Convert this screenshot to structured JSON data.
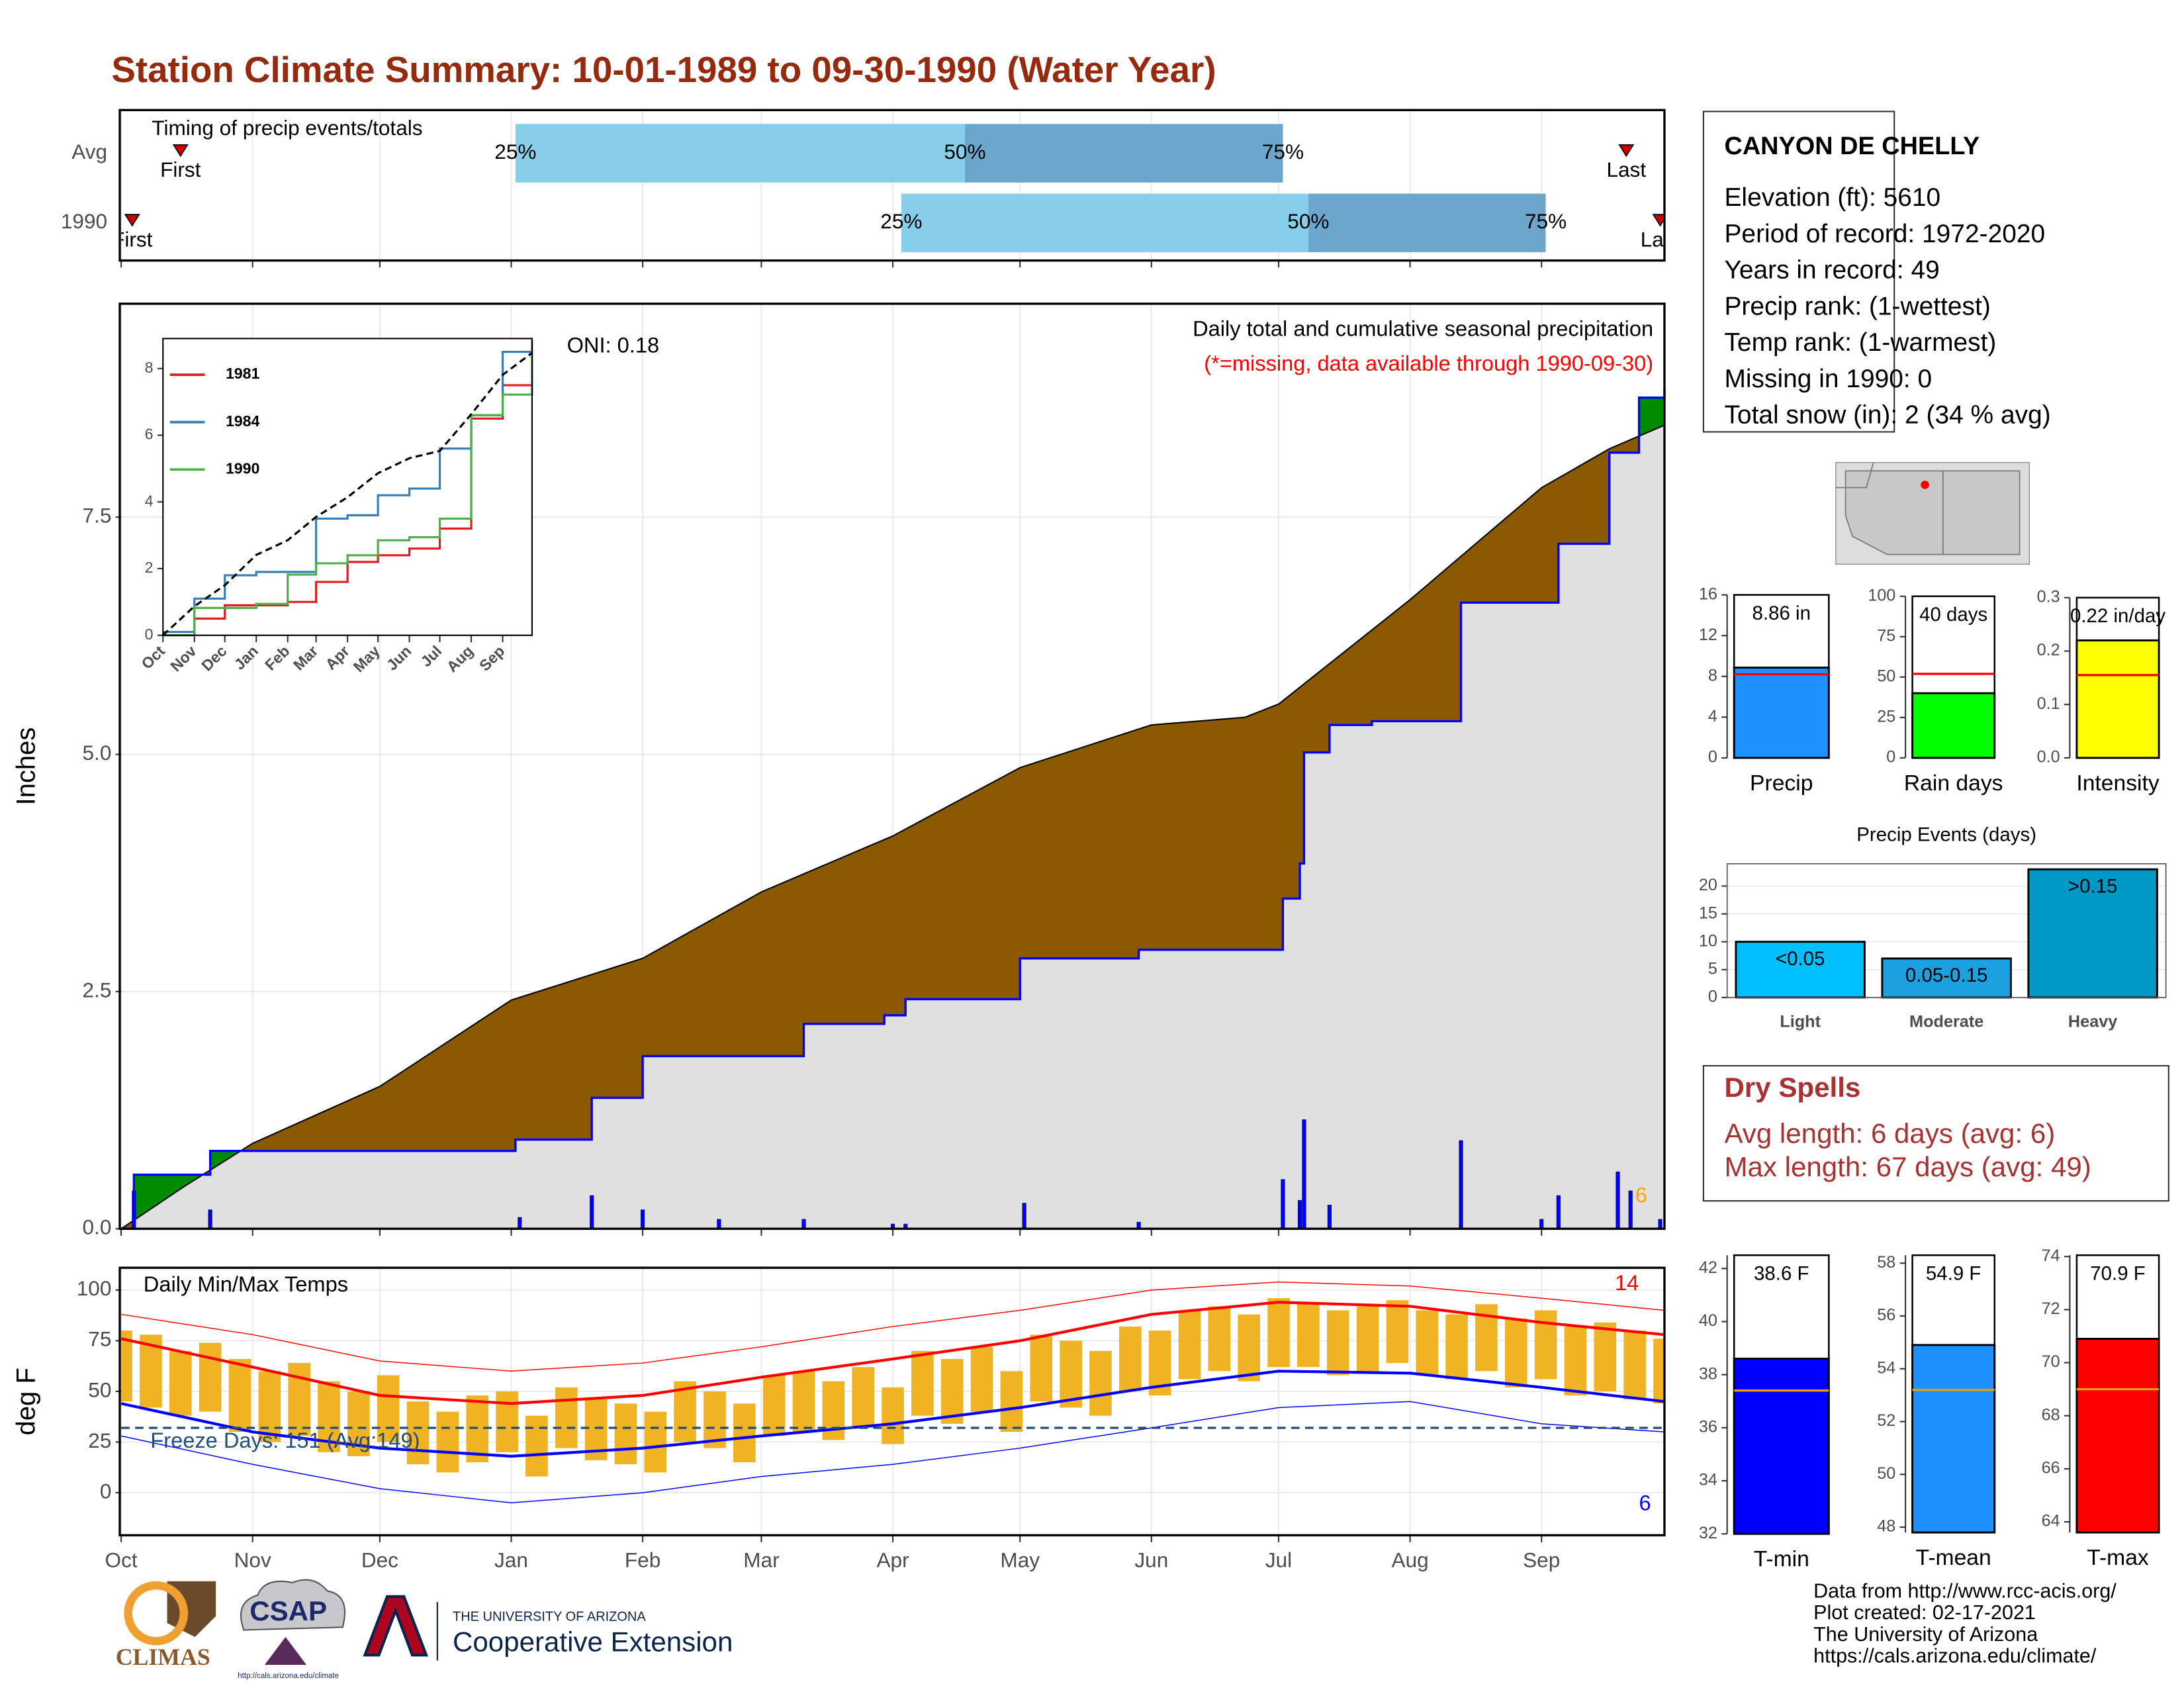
{
  "title": "Station Climate Summary: 10-01-1989 to 09-30-1990 (Water Year)",
  "chart_data": [
    {
      "type": "timeline",
      "title": "Timing of precip events/totals",
      "categories": [
        "Avg",
        "1990"
      ],
      "rows": [
        {
          "first": 14,
          "q25": 93,
          "q50": 199,
          "q75": 274,
          "last": 355
        },
        {
          "first": 2.6,
          "q25": 184,
          "q50": 280,
          "q75": 336,
          "last": 363
        }
      ],
      "marker_labels": {
        "first": "First",
        "last": "Last",
        "q25": "25%",
        "q50": "50%",
        "q75": "75%"
      },
      "colors": [
        "#87ceeb",
        "#6ca6cd"
      ],
      "marker_color": "#cc0000",
      "xlim": [
        0,
        364
      ],
      "xticks": [
        0,
        31,
        61,
        92,
        123,
        151,
        182,
        212,
        243,
        273,
        304,
        335
      ],
      "grid": true
    },
    {
      "type": "area",
      "ylabel": "Inches",
      "annotations": [
        {
          "text": "ONI: 0.18"
        },
        {
          "text": "Daily total and cumulative seasonal precipitation"
        },
        {
          "text": "(*=missing, data available through 1990-09-30)",
          "color": "#ff0000"
        },
        {
          "text": "6",
          "color": "#ffa500"
        }
      ],
      "xlim": [
        0,
        364
      ],
      "xticks": [
        0,
        31,
        61,
        92,
        123,
        151,
        182,
        212,
        243,
        273,
        304,
        335
      ],
      "ylim": [
        0,
        9.75
      ],
      "yticks": [
        {
          "value": 0,
          "label": "0.0"
        },
        2.5,
        {
          "value": 5,
          "label": "5.0"
        },
        7.5
      ],
      "grid": true,
      "series": [
        {
          "color": "#0000ff",
          "step": true,
          "x": [
            0,
            3,
            21,
            93,
            111,
            123,
            161,
            180,
            185,
            212,
            240,
            274,
            278,
            279,
            285,
            295,
            316,
            339,
            351,
            358,
            364
          ],
          "values": [
            0,
            0.57,
            0.82,
            0.94,
            1.38,
            1.82,
            2.16,
            2.25,
            2.42,
            2.85,
            2.94,
            3.48,
            3.85,
            5.02,
            5.31,
            5.35,
            6.6,
            7.22,
            8.18,
            8.76,
            8.86
          ]
        },
        {
          "color": "#000000",
          "x": [
            0,
            15,
            31,
            61,
            92,
            123,
            151,
            182,
            212,
            243,
            265,
            273,
            304,
            335,
            351,
            364
          ],
          "values": [
            0,
            0.45,
            0.9,
            1.5,
            2.41,
            2.85,
            3.55,
            4.14,
            4.86,
            5.31,
            5.39,
            5.53,
            6.63,
            7.81,
            8.22,
            8.47
          ]
        }
      ],
      "fills": {
        "above": "#008b00",
        "below": "#8b5a00",
        "base": "#e0e0e0"
      },
      "bars": {
        "color": "#0000ff",
        "x": [
          3,
          21,
          94,
          111,
          123,
          141,
          161,
          182,
          185,
          213,
          240,
          274,
          278,
          279,
          285,
          316,
          335,
          339,
          353,
          356,
          363
        ],
        "values": [
          0.4,
          0.2,
          0.12,
          0.35,
          0.2,
          0.1,
          0.1,
          0.05,
          0.05,
          0.27,
          0.07,
          0.52,
          0.3,
          1.15,
          0.25,
          0.93,
          0.1,
          0.35,
          0.6,
          0.4,
          0.1
        ]
      }
    },
    {
      "type": "line",
      "legend": true,
      "x": [
        0,
        31,
        61,
        92,
        123,
        151,
        182,
        212,
        243,
        273,
        304,
        335,
        364
      ],
      "xlim": [
        0,
        364
      ],
      "xticks": [
        {
          "value": 0,
          "label": "Oct"
        },
        {
          "value": 31,
          "label": "Nov"
        },
        {
          "value": 61,
          "label": "Dec"
        },
        {
          "value": 92,
          "label": "Jan"
        },
        {
          "value": 123,
          "label": "Feb"
        },
        {
          "value": 151,
          "label": "Mar"
        },
        {
          "value": 182,
          "label": "Apr"
        },
        {
          "value": 212,
          "label": "May"
        },
        {
          "value": 243,
          "label": "Jun"
        },
        {
          "value": 273,
          "label": "Jul"
        },
        {
          "value": 304,
          "label": "Aug"
        },
        {
          "value": 335,
          "label": "Sep"
        }
      ],
      "ylim": [
        0,
        8.9
      ],
      "yticks": [
        0,
        2,
        4,
        6,
        8
      ],
      "series": [
        {
          "name": "1981",
          "color": "#e41a1c",
          "step": true,
          "values": [
            0,
            0.5,
            0.9,
            0.9,
            1.0,
            1.6,
            2.2,
            2.4,
            2.6,
            3.2,
            6.5,
            7.5,
            7.5
          ]
        },
        {
          "name": "1984",
          "color": "#377eb8",
          "step": true,
          "values": [
            0.1,
            1.1,
            1.8,
            1.9,
            1.9,
            3.5,
            3.6,
            4.2,
            4.4,
            5.6,
            6.6,
            8.5,
            8.8
          ]
        },
        {
          "name": "1990",
          "color": "#4daf4a",
          "step": true,
          "values": [
            0,
            0.82,
            0.82,
            0.94,
            1.82,
            2.16,
            2.4,
            2.85,
            2.94,
            3.5,
            6.6,
            7.22,
            8.86
          ]
        },
        {
          "color": "#000000",
          "dash": true,
          "values": [
            0,
            0.87,
            1.5,
            2.41,
            2.85,
            3.55,
            4.14,
            4.86,
            5.31,
            5.53,
            6.63,
            7.81,
            8.47
          ]
        }
      ]
    },
    {
      "type": "bar",
      "xlabel": "Precip",
      "values": [
        8.86
      ],
      "value_labels": [
        "8.86 in"
      ],
      "color": "#1e90ff",
      "avg": 8.2,
      "avg_color": "#ff0000",
      "ylim": [
        0,
        16
      ],
      "yticks": [
        0,
        4,
        8,
        12,
        16
      ]
    },
    {
      "type": "bar",
      "xlabel": "Rain days",
      "values": [
        40
      ],
      "value_labels": [
        "40 days"
      ],
      "color": "#00ff00",
      "avg": 52,
      "avg_color": "#ff0000",
      "ylim": [
        0,
        100
      ],
      "yticks": [
        0,
        25,
        50,
        75,
        100
      ]
    },
    {
      "type": "bar",
      "xlabel": "Intensity",
      "values": [
        0.22
      ],
      "value_labels": [
        "0.22 in/day"
      ],
      "color": "#ffff00",
      "avg": 0.155,
      "avg_color": "#ff0000",
      "ylim": [
        0,
        0.3
      ],
      "yticks": [
        {
          "value": 0,
          "label": "0.0"
        },
        0.1,
        0.2,
        0.3
      ]
    },
    {
      "type": "bar",
      "title": "Precip Events (days)",
      "categories": [
        "Light",
        "Moderate",
        "Heavy"
      ],
      "values": [
        10,
        7,
        23
      ],
      "bar_labels": [
        "<0.05",
        "0.05-0.15",
        ">0.15"
      ],
      "colors": [
        "#00bfff",
        "#1ca0e0",
        "#0099c6"
      ],
      "ylim": [
        0,
        24
      ],
      "yticks": [
        0,
        5,
        10,
        15,
        20
      ],
      "grid": true
    },
    {
      "type": "range",
      "ylabel": "deg F",
      "annotations": [
        {
          "text": "Daily Min/Max Temps"
        },
        {
          "text": "Freeze Days: 151 (Avg:149)",
          "color": "#1f4e79"
        },
        {
          "text": "14",
          "color": "#ff0000"
        },
        {
          "text": "6",
          "color": "#0000ff"
        }
      ],
      "xlim": [
        0,
        364
      ],
      "xticks": [
        {
          "value": 0,
          "label": "Oct"
        },
        {
          "value": 31,
          "label": "Nov"
        },
        {
          "value": 61,
          "label": "Dec"
        },
        {
          "value": 92,
          "label": "Jan"
        },
        {
          "value": 123,
          "label": "Feb"
        },
        {
          "value": 151,
          "label": "Mar"
        },
        {
          "value": 182,
          "label": "Apr"
        },
        {
          "value": 212,
          "label": "May"
        },
        {
          "value": 243,
          "label": "Jun"
        },
        {
          "value": 273,
          "label": "Jul"
        },
        {
          "value": 304,
          "label": "Aug"
        },
        {
          "value": 335,
          "label": "Sep"
        }
      ],
      "ylim": [
        -21,
        111
      ],
      "yticks": [
        0,
        25,
        50,
        75,
        100
      ],
      "grid": true,
      "freeze": 32,
      "freeze_color": "#1f4e79",
      "bars": {
        "color": "#f0b323",
        "x": [
          0,
          7,
          14,
          21,
          28,
          35,
          42,
          49,
          56,
          63,
          70,
          77,
          84,
          91,
          98,
          105,
          112,
          119,
          126,
          133,
          140,
          147,
          154,
          161,
          168,
          175,
          182,
          189,
          196,
          203,
          210,
          217,
          224,
          231,
          238,
          245,
          252,
          259,
          266,
          273,
          280,
          287,
          294,
          301,
          308,
          315,
          322,
          329,
          336,
          343,
          350,
          357,
          364
        ],
        "high": [
          80,
          78,
          70,
          74,
          66,
          60,
          64,
          55,
          50,
          58,
          45,
          40,
          48,
          50,
          38,
          52,
          46,
          44,
          40,
          55,
          50,
          44,
          58,
          60,
          55,
          62,
          52,
          70,
          66,
          72,
          60,
          78,
          75,
          70,
          82,
          80,
          90,
          92,
          88,
          96,
          94,
          90,
          92,
          95,
          90,
          88,
          93,
          86,
          90,
          82,
          84,
          80,
          76
        ],
        "low": [
          45,
          42,
          38,
          40,
          30,
          25,
          28,
          20,
          18,
          25,
          14,
          10,
          15,
          20,
          8,
          22,
          16,
          14,
          10,
          25,
          22,
          15,
          28,
          30,
          26,
          32,
          24,
          38,
          34,
          40,
          30,
          45,
          42,
          38,
          50,
          48,
          56,
          60,
          55,
          62,
          62,
          58,
          60,
          64,
          58,
          56,
          60,
          52,
          56,
          48,
          50,
          46,
          44
        ]
      },
      "x": [
        0,
        31,
        61,
        92,
        123,
        151,
        182,
        212,
        243,
        273,
        304,
        335,
        364
      ],
      "series": [
        {
          "color": "#ff0000",
          "thin": true,
          "values": [
            88,
            78,
            65,
            60,
            64,
            72,
            82,
            90,
            100,
            104,
            102,
            96,
            90
          ]
        },
        {
          "color": "#0000ff",
          "thin": true,
          "values": [
            28,
            14,
            2,
            -5,
            0,
            8,
            14,
            22,
            32,
            42,
            45,
            34,
            30
          ]
        },
        {
          "color": "#ff0000",
          "values": [
            76,
            62,
            48,
            44,
            48,
            57,
            66,
            75,
            88,
            94,
            92,
            84,
            78
          ]
        },
        {
          "color": "#0000ff",
          "values": [
            44,
            30,
            22,
            18,
            22,
            28,
            34,
            42,
            52,
            60,
            59,
            52,
            45
          ]
        }
      ]
    },
    {
      "type": "bar",
      "xlabel": "T-min",
      "values": [
        38.6
      ],
      "value_labels": [
        "38.6 F"
      ],
      "color": "#0000ff",
      "avg": 37.4,
      "avg_color": "#e69f00",
      "ylim": [
        32,
        42.5
      ],
      "yticks": [
        32,
        34,
        36,
        38,
        40,
        42
      ]
    },
    {
      "type": "bar",
      "xlabel": "T-mean",
      "values": [
        54.9
      ],
      "value_labels": [
        "54.9 F"
      ],
      "color": "#1e90ff",
      "avg": 53.2,
      "avg_color": "#e69f00",
      "ylim": [
        47.8,
        58.3
      ],
      "yticks": [
        48,
        50,
        52,
        54,
        56,
        58
      ]
    },
    {
      "type": "bar",
      "xlabel": "T-max",
      "values": [
        70.9
      ],
      "value_labels": [
        "70.9 F"
      ],
      "color": "#ff0000",
      "avg": 69,
      "avg_color": "#e69f00",
      "ylim": [
        63.6,
        74.05
      ],
      "yticks": [
        64,
        66,
        68,
        70,
        72,
        74
      ]
    }
  ],
  "station": {
    "name": "CANYON DE CHELLY",
    "lines": [
      "Elevation (ft): 5610",
      "Period of record: 1972-2020",
      "Years in record: 49",
      "Precip rank:  (1-wettest)",
      "Temp rank:  (1-warmest)",
      "Missing in 1990: 0",
      "Total snow (in): 2 (34 % avg)"
    ]
  },
  "dry_spells": {
    "title": "Dry Spells",
    "lines": [
      "Avg length: 6 days (avg: 6)",
      "Max length: 67 days (avg: 49)"
    ]
  },
  "footer": [
    "Data from http://www.rcc-acis.org/",
    "Plot created: 02-17-2021",
    "The University of Arizona",
    "https://cals.arizona.edu/climate/"
  ],
  "logos": {
    "climas": "CLIMAS",
    "csap": "CSAP",
    "csap_url": "http://cals.arizona.edu/climate",
    "ua": "THE UNIVERSITY OF ARIZONA",
    "extension": "Cooperative Extension"
  }
}
